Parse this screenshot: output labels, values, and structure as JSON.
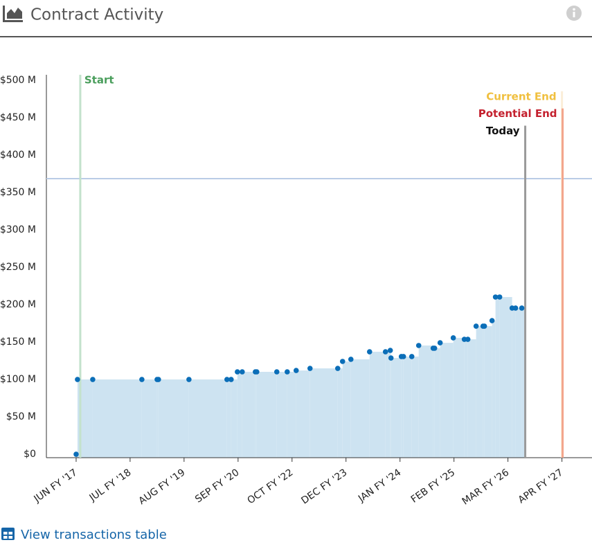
{
  "header": {
    "title": "Contract Activity"
  },
  "footer": {
    "link": "View transactions table"
  },
  "chart_data": {
    "type": "scatter",
    "x": [
      2017.417,
      2017.444,
      2017.75,
      2018.736,
      2019.042,
      2019.069,
      2019.681,
      2020.444,
      2020.528,
      2020.653,
      2020.75,
      2021.014,
      2021.042,
      2021.444,
      2021.653,
      2021.833,
      2022.111,
      2022.667,
      2022.764,
      2022.931,
      2023.306,
      2023.625,
      2023.722,
      2023.736,
      2023.944,
      2023.986,
      2024.153,
      2024.292,
      2024.583,
      2024.611,
      2024.722,
      2024.986,
      2025.208,
      2025.278,
      2025.444,
      2025.583,
      2025.611,
      2025.764,
      2025.833,
      2025.917,
      2026.167,
      2026.236,
      2026.361
    ],
    "values": [
      0,
      100,
      100,
      100,
      100,
      100,
      100,
      100,
      100,
      110.2,
      110.2,
      110.2,
      110.2,
      110.2,
      110.2,
      112,
      114.8,
      114.8,
      124.1,
      126.9,
      137,
      137,
      138.9,
      128.7,
      130.6,
      130.6,
      130.6,
      145.4,
      141.7,
      141.7,
      149,
      155.6,
      153.7,
      153.7,
      171.3,
      171.3,
      171.3,
      178.7,
      210.2,
      210.2,
      195.4,
      195.4,
      195.4
    ],
    "color": "#0b6eb8",
    "area_color": "#cde3f1",
    "xlim": [
      2016.82,
      2027.77
    ],
    "xticks": [
      {
        "value": 2017.417,
        "label": "JUN FY '17"
      },
      {
        "value": 2018.5,
        "label": "JUL FY '18"
      },
      {
        "value": 2019.583,
        "label": "AUG FY '19"
      },
      {
        "value": 2020.667,
        "label": "SEP FY '20"
      },
      {
        "value": 2021.75,
        "label": "OCT FY '22"
      },
      {
        "value": 2022.833,
        "label": "DEC FY '23"
      },
      {
        "value": 2023.917,
        "label": "JAN FY '24"
      },
      {
        "value": 2025,
        "label": "FEB FY '25"
      },
      {
        "value": 2026.083,
        "label": "MAR FY '26"
      },
      {
        "value": 2027.167,
        "label": "APR FY '27"
      }
    ],
    "ylim": [
      -4.6,
      507.4
    ],
    "yticks": [
      {
        "value": 0,
        "label": "$0"
      },
      {
        "value": 50,
        "label": "$50 M"
      },
      {
        "value": 100,
        "label": "$100 M"
      },
      {
        "value": 150,
        "label": "$150 M"
      },
      {
        "value": 200,
        "label": "$200 M"
      },
      {
        "value": 250,
        "label": "$250 M"
      },
      {
        "value": 300,
        "label": "$300 M"
      },
      {
        "value": 350,
        "label": "$350 M"
      },
      {
        "value": 400,
        "label": "$400 M"
      },
      {
        "value": 450,
        "label": "$450 M"
      },
      {
        "value": 500,
        "label": "$500 M"
      }
    ],
    "reference_line": {
      "value": 368.5,
      "color": "#b9cce6"
    },
    "markers": [
      {
        "label": "Start",
        "x": 2017.5,
        "color": "#4a9e5c",
        "line_color": "#c3e2cc",
        "label_side": "right",
        "label_y": 500
      },
      {
        "label": "Current End",
        "x": 2027.167,
        "color": "#f0c040",
        "line_color": "#fbeed8",
        "label_side": "left",
        "label_y": 478
      },
      {
        "label": "Potential End",
        "x": 2027.18,
        "color": "#c4202e",
        "line_color": "#f3a58c",
        "label_side": "left",
        "label_y": 455
      },
      {
        "label": "Today",
        "x": 2026.43,
        "color": "#111111",
        "line_color": "#9a9a9a",
        "label_side": "left",
        "label_y": 432
      }
    ]
  }
}
